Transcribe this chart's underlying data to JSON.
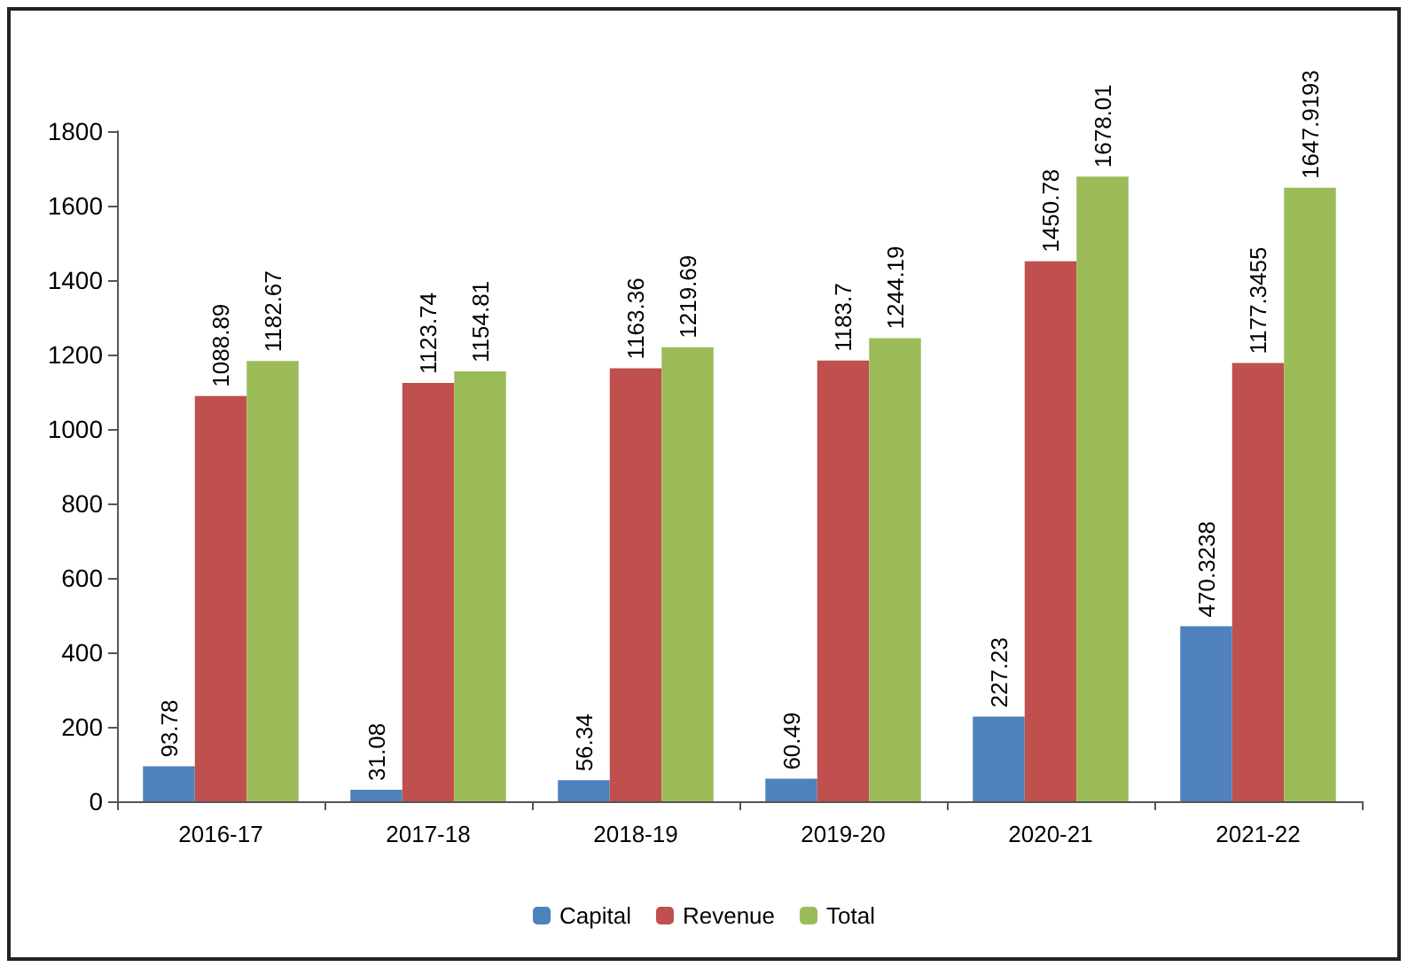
{
  "chart_data": {
    "type": "bar",
    "categories": [
      "2016-17",
      "2017-18",
      "2018-19",
      "2019-20",
      "2020-21",
      "2021-22"
    ],
    "series": [
      {
        "name": "Capital",
        "color": "#4f81bd",
        "values": [
          93.78,
          31.08,
          56.34,
          60.49,
          227.23,
          470.3238
        ]
      },
      {
        "name": "Revenue",
        "color": "#c0504d",
        "values": [
          1088.89,
          1123.74,
          1163.36,
          1183.7,
          1450.78,
          1177.3455
        ]
      },
      {
        "name": "Total",
        "color": "#9bbb59",
        "values": [
          1182.67,
          1154.81,
          1219.69,
          1244.19,
          1678.01,
          1647.9193
        ]
      }
    ],
    "ylim": [
      0,
      1800
    ],
    "yticks": [
      0,
      200,
      400,
      600,
      800,
      1000,
      1200,
      1400,
      1600,
      1800
    ],
    "grid": false,
    "legend": "bottom",
    "data_labels": true
  }
}
